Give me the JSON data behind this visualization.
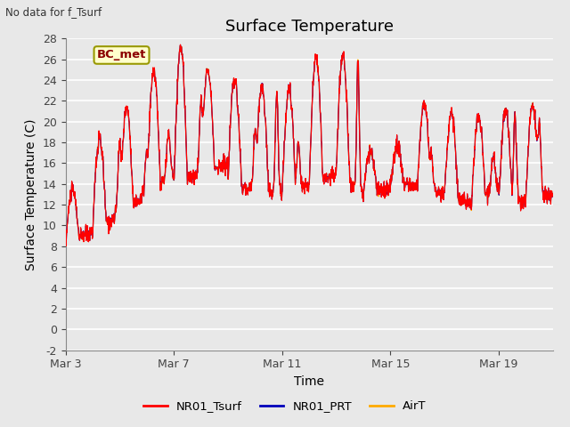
{
  "title": "Surface Temperature",
  "xlabel": "Time",
  "ylabel": "Surface Temperature (C)",
  "top_left_text": "No data for f_Tsurf",
  "annotation_box_text": "BC_met",
  "ylim": [
    -2,
    28
  ],
  "yticks": [
    -2,
    0,
    2,
    4,
    6,
    8,
    10,
    12,
    14,
    16,
    18,
    20,
    22,
    24,
    26,
    28
  ],
  "xtick_labels": [
    "Mar 3",
    "Mar 7",
    "Mar 11",
    "Mar 15",
    "Mar 19"
  ],
  "xtick_positions": [
    0,
    4,
    8,
    12,
    16
  ],
  "xlim": [
    0,
    18
  ],
  "legend_labels": [
    "NR01_Tsurf",
    "NR01_PRT",
    "AirT"
  ],
  "line_colors": [
    "#ff0000",
    "#0000bb",
    "#ffaa00"
  ],
  "background_color": "#e8e8e8",
  "grid_color": "#ffffff",
  "title_fontsize": 13,
  "axis_label_fontsize": 10,
  "tick_fontsize": 9,
  "n_points": 1800,
  "figsize": [
    6.4,
    4.8
  ],
  "dpi": 100
}
